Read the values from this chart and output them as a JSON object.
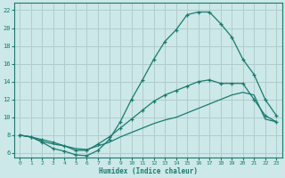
{
  "xlabel": "Humidex (Indice chaleur)",
  "ylabel": "",
  "xlim": [
    -0.5,
    23.5
  ],
  "ylim": [
    5.5,
    22.8
  ],
  "yticks": [
    6,
    8,
    10,
    12,
    14,
    16,
    18,
    20,
    22
  ],
  "xticks": [
    0,
    1,
    2,
    3,
    4,
    5,
    6,
    7,
    8,
    9,
    10,
    11,
    12,
    13,
    14,
    15,
    16,
    17,
    18,
    19,
    20,
    21,
    22,
    23
  ],
  "bg_color": "#cce8e8",
  "grid_color": "#b0cccc",
  "line_color": "#1a7a6e",
  "line1_x": [
    0,
    1,
    2,
    3,
    4,
    5,
    6,
    7,
    8,
    9,
    10,
    11,
    12,
    13,
    14,
    15,
    16,
    17,
    18,
    19,
    20,
    21,
    22,
    23
  ],
  "line1_y": [
    8.0,
    7.8,
    7.2,
    6.5,
    6.2,
    5.8,
    5.7,
    6.3,
    7.5,
    9.5,
    12.0,
    14.2,
    16.5,
    18.5,
    19.8,
    21.5,
    21.8,
    21.8,
    20.5,
    19.0,
    16.5,
    14.8,
    12.0,
    10.2
  ],
  "line2_x": [
    0,
    1,
    2,
    3,
    4,
    5,
    6,
    7,
    8,
    9,
    10,
    11,
    12,
    13,
    14,
    15,
    16,
    17,
    18,
    19,
    20,
    21,
    22,
    23
  ],
  "line2_y": [
    8.0,
    7.8,
    7.5,
    7.2,
    6.8,
    6.3,
    6.3,
    7.0,
    7.8,
    8.8,
    9.8,
    10.8,
    11.8,
    12.5,
    13.0,
    13.5,
    14.0,
    14.2,
    13.8,
    13.8,
    13.8,
    12.0,
    10.2,
    9.5
  ],
  "line3_x": [
    0,
    1,
    2,
    3,
    4,
    5,
    6,
    7,
    8,
    9,
    10,
    11,
    12,
    13,
    14,
    15,
    16,
    17,
    18,
    19,
    20,
    21,
    22,
    23
  ],
  "line3_y": [
    8.0,
    7.8,
    7.3,
    7.0,
    6.8,
    6.5,
    6.4,
    6.8,
    7.2,
    7.8,
    8.3,
    8.8,
    9.3,
    9.7,
    10.0,
    10.5,
    11.0,
    11.5,
    12.0,
    12.5,
    12.8,
    12.5,
    9.8,
    9.5
  ]
}
